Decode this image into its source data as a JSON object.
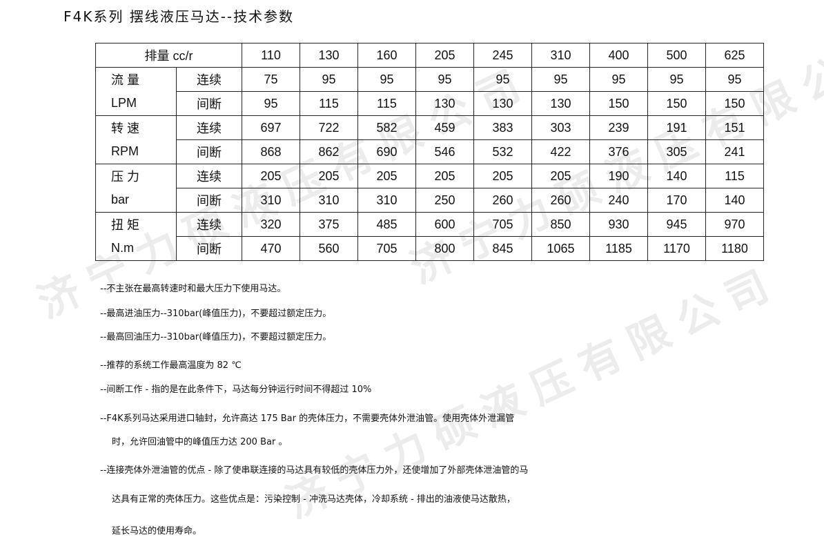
{
  "watermark": "济宁力硕液压有限公司",
  "title": "F4K系列 摆线液压马达--技术参数",
  "table": {
    "header_label": "排量 cc/r",
    "displacements": [
      "110",
      "130",
      "160",
      "205",
      "245",
      "310",
      "400",
      "500",
      "625"
    ],
    "groups": [
      {
        "label_top": "流 量",
        "label_bottom": "LPM",
        "rows": [
          {
            "mode": "连续",
            "values": [
              "75",
              "95",
              "95",
              "95",
              "95",
              "95",
              "95",
              "95",
              "95"
            ]
          },
          {
            "mode": "间断",
            "values": [
              "95",
              "115",
              "115",
              "130",
              "130",
              "130",
              "150",
              "150",
              "150"
            ]
          }
        ]
      },
      {
        "label_top": "转 速",
        "label_bottom": "RPM",
        "rows": [
          {
            "mode": "连续",
            "values": [
              "697",
              "722",
              "582",
              "459",
              "383",
              "303",
              "239",
              "191",
              "151"
            ]
          },
          {
            "mode": "间断",
            "values": [
              "868",
              "862",
              "690",
              "546",
              "532",
              "422",
              "376",
              "305",
              "241"
            ]
          }
        ]
      },
      {
        "label_top": "压 力",
        "label_bottom": "bar",
        "rows": [
          {
            "mode": "连续",
            "values": [
              "205",
              "205",
              "205",
              "205",
              "205",
              "205",
              "190",
              "140",
              "115"
            ]
          },
          {
            "mode": "间断",
            "values": [
              "310",
              "310",
              "310",
              "250",
              "260",
              "260",
              "240",
              "170",
              "140"
            ]
          }
        ]
      },
      {
        "label_top": "扭 矩",
        "label_bottom": "N.m",
        "rows": [
          {
            "mode": "连续",
            "values": [
              "320",
              "375",
              "485",
              "600",
              "705",
              "850",
              "930",
              "945",
              "970"
            ]
          },
          {
            "mode": "间断",
            "values": [
              "470",
              "560",
              "705",
              "800",
              "845",
              "1065",
              "1185",
              "1170",
              "1180"
            ]
          }
        ]
      }
    ]
  },
  "notes": [
    "--不主张在最高转速时和最大压力下使用马达。",
    "--最高进油压力--310bar(峰值压力)，不要超过额定压力。",
    "--最高回油压力--310bar(峰值压力)，不要超过额定压力。",
    "--推荐的系统工作最高温度为 82 ℃",
    "--间断工作 - 指的是在此条件下，马达每分钟运行时间不得超过 10%",
    "--F4K系列马达采用进口轴封，允许高达 175 Bar 的壳体压力，不需要壳体外泄油管。使用壳体外泄漏管",
    "   时，允许回油管中的峰值压力达 200 Bar 。",
    "--连接壳体外泄油管的优点 - 除了使串联连接的马达具有较低的壳体压力外，还使增加了外部壳体泄油管的马",
    "   达具有正常的壳体压力。这些优点是：污染控制 - 冲洗马达壳体，冷却系统 - 排出的油液使马达散热，",
    "   延长马达的使用寿命。"
  ]
}
